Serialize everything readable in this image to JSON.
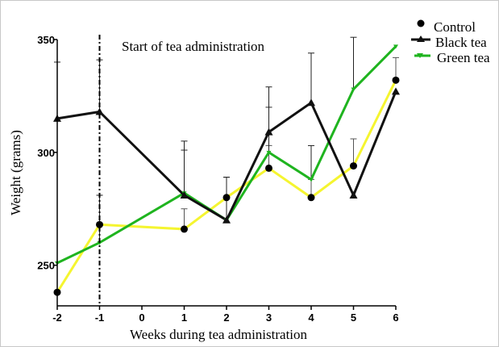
{
  "chart_data": {
    "type": "line",
    "title": "",
    "xlabel": "Weeks during tea administration",
    "ylabel": "Weight (grams)",
    "annotation": "Start of tea administration",
    "annotation_x": -1,
    "x": [
      -2,
      -1,
      1,
      2,
      3,
      4,
      5,
      6
    ],
    "xticks": [
      -2,
      -1,
      0,
      1,
      2,
      3,
      4,
      5,
      6
    ],
    "yticks": [
      250,
      300,
      350
    ],
    "xlim": [
      -2,
      6
    ],
    "ylim": [
      232,
      350
    ],
    "grid": false,
    "legend_position": "top-right",
    "series": [
      {
        "name": "Control",
        "color": "#f5f530",
        "marker": "circle",
        "values": [
          238,
          268,
          266,
          280,
          293,
          280,
          294,
          332
        ],
        "errors": [
          null,
          13,
          9,
          9,
          10,
          8,
          12,
          10
        ]
      },
      {
        "name": "Black tea",
        "color": "#111111",
        "marker": "triangle-up",
        "values": [
          315,
          318,
          281,
          270,
          309,
          322,
          281,
          327
        ],
        "errors": [
          25,
          23,
          20,
          10,
          20,
          22,
          null,
          null
        ]
      },
      {
        "name": "Green tea",
        "color": "#1fb41f",
        "marker": "triangle-down",
        "values": [
          251,
          260,
          282,
          270,
          300,
          288,
          328,
          347
        ],
        "errors": [
          null,
          21,
          23,
          19,
          20,
          15,
          23,
          null
        ]
      }
    ]
  }
}
